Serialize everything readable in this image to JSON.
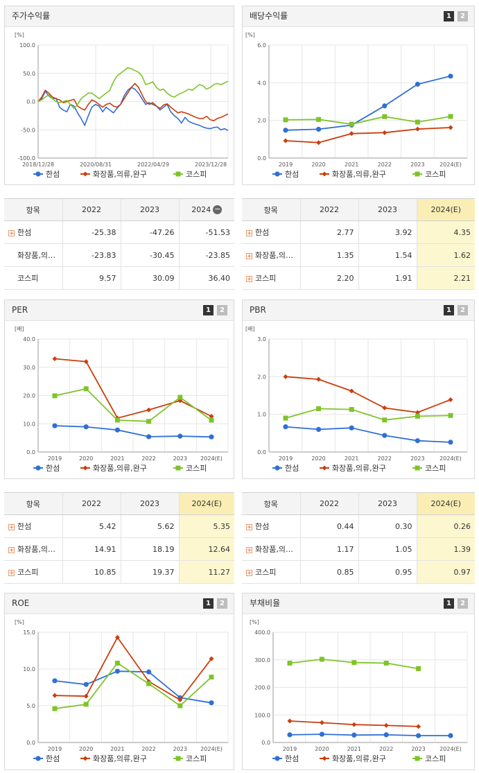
{
  "panels": {
    "p0": {
      "title": "주가수익률"
    },
    "p1": {
      "title": "배당수익률",
      "page1": "1",
      "page2": "2"
    },
    "p2": {
      "title": "PER",
      "page1": "1",
      "page2": "2"
    },
    "p3": {
      "title": "PBR",
      "page1": "1",
      "page2": "2"
    },
    "p4": {
      "title": "ROE",
      "page1": "1",
      "page2": "2"
    },
    "p5": {
      "title": "부채비율",
      "page1": "1",
      "page2": "2"
    }
  },
  "legend": [
    "한섬",
    "화장품,의류,완구",
    "코스피"
  ],
  "colors": {
    "s0": "#2f6fd6",
    "s1": "#cc3d0c",
    "s2": "#7ec428"
  },
  "tables": {
    "t0": {
      "headers": [
        "항목",
        "2022",
        "2023",
        "2024"
      ],
      "rows": [
        {
          "name": "한섬",
          "v": [
            "-25.38",
            "-47.26",
            "-51.53"
          ],
          "plus": true
        },
        {
          "name": "화장품,의…",
          "v": [
            "-23.83",
            "-30.45",
            "-23.85"
          ],
          "plus": false
        },
        {
          "name": "코스피",
          "v": [
            "9.57",
            "30.09",
            "36.40"
          ],
          "plus": false
        }
      ]
    },
    "t1": {
      "headers": [
        "항목",
        "2022",
        "2023",
        "2024(E)"
      ],
      "rows": [
        {
          "name": "한섬",
          "v": [
            "2.77",
            "3.92",
            "4.35"
          ]
        },
        {
          "name": "화장품,의…",
          "v": [
            "1.35",
            "1.54",
            "1.62"
          ]
        },
        {
          "name": "코스피",
          "v": [
            "2.20",
            "1.91",
            "2.21"
          ]
        }
      ]
    },
    "t2": {
      "headers": [
        "항목",
        "2022",
        "2023",
        "2024(E)"
      ],
      "rows": [
        {
          "name": "한섬",
          "v": [
            "5.42",
            "5.62",
            "5.35"
          ]
        },
        {
          "name": "화장품,의…",
          "v": [
            "14.91",
            "18.19",
            "12.64"
          ]
        },
        {
          "name": "코스피",
          "v": [
            "10.85",
            "19.37",
            "11.27"
          ]
        }
      ]
    },
    "t3": {
      "headers": [
        "항목",
        "2022",
        "2023",
        "2024(E)"
      ],
      "rows": [
        {
          "name": "한섬",
          "v": [
            "0.44",
            "0.30",
            "0.26"
          ]
        },
        {
          "name": "화장품,의…",
          "v": [
            "1.17",
            "1.05",
            "1.39"
          ]
        },
        {
          "name": "코스피",
          "v": [
            "0.85",
            "0.95",
            "0.97"
          ]
        }
      ]
    }
  },
  "chart_data": [
    {
      "type": "line",
      "title": "주가수익률",
      "ylabel": "[%]",
      "ylim": [
        -100,
        100
      ],
      "yticks": [
        "100.0",
        "50.0",
        "0.0",
        "-50.0",
        "-100.0"
      ],
      "xticks": [
        "2018/12/28",
        "2020/08/31",
        "2022/04/29",
        "2023/12/28"
      ],
      "series": [
        {
          "name": "한섬",
          "values": [
            0,
            5,
            18,
            10,
            5,
            6,
            -10,
            -15,
            -18,
            -5,
            -8,
            -20,
            -30,
            -42,
            -25,
            -10,
            -5,
            -8,
            -18,
            -10,
            -15,
            -20,
            -12,
            -5,
            10,
            20,
            25,
            22,
            15,
            5,
            -5,
            -2,
            -5,
            -8,
            -15,
            -10,
            -5,
            -18,
            -25,
            -30,
            -38,
            -28,
            -35,
            -38,
            -40,
            -42,
            -45,
            -47,
            -48,
            -46,
            -45,
            -50,
            -48,
            -51
          ]
        },
        {
          "name": "화장품,의류,완구",
          "values": [
            0,
            8,
            20,
            15,
            8,
            5,
            3,
            -2,
            0,
            2,
            4,
            -8,
            -12,
            -15,
            -5,
            3,
            0,
            -5,
            -10,
            -5,
            -3,
            -8,
            -10,
            -5,
            5,
            15,
            25,
            32,
            25,
            12,
            0,
            -5,
            -2,
            -8,
            -12,
            -6,
            -4,
            -10,
            -15,
            -20,
            -18,
            -20,
            -22,
            -25,
            -28,
            -30,
            -30,
            -26,
            -32,
            -34,
            -30,
            -28,
            -25,
            -22
          ]
        },
        {
          "name": "코스피",
          "values": [
            0,
            3,
            8,
            12,
            5,
            0,
            -2,
            0,
            2,
            -5,
            -12,
            -5,
            5,
            10,
            15,
            15,
            10,
            5,
            10,
            15,
            20,
            35,
            45,
            50,
            55,
            60,
            58,
            55,
            52,
            45,
            30,
            32,
            35,
            25,
            20,
            22,
            15,
            10,
            8,
            12,
            15,
            18,
            22,
            20,
            25,
            30,
            28,
            22,
            25,
            30,
            32,
            30,
            33,
            36
          ]
        }
      ]
    },
    {
      "type": "line",
      "title": "배당수익률",
      "ylabel": "[%]",
      "ylim": [
        0,
        6
      ],
      "yticks": [
        "6.0",
        "4.0",
        "2.0",
        "0.0"
      ],
      "categories": [
        "2019",
        "2020",
        "2021",
        "2022",
        "2023",
        "2024(E)"
      ],
      "series": [
        {
          "name": "한섬",
          "values": [
            1.48,
            1.53,
            1.75,
            2.77,
            3.92,
            4.35
          ]
        },
        {
          "name": "화장품,의류,완구",
          "values": [
            0.92,
            0.82,
            1.3,
            1.35,
            1.54,
            1.62
          ]
        },
        {
          "name": "코스피",
          "values": [
            2.03,
            2.05,
            1.8,
            2.2,
            1.91,
            2.21
          ]
        }
      ]
    },
    {
      "type": "line",
      "title": "PER",
      "ylabel": "[배]",
      "ylim": [
        0,
        40
      ],
      "yticks": [
        "40.0",
        "30.0",
        "20.0",
        "10.0",
        "0.0"
      ],
      "categories": [
        "2019",
        "2020",
        "2021",
        "2022",
        "2023",
        "2024(E)"
      ],
      "series": [
        {
          "name": "한섬",
          "values": [
            9.3,
            8.9,
            7.8,
            5.42,
            5.62,
            5.35
          ]
        },
        {
          "name": "화장품,의류,완구",
          "values": [
            33.0,
            32.0,
            12.0,
            14.91,
            18.19,
            12.64
          ]
        },
        {
          "name": "코스피",
          "values": [
            19.9,
            22.4,
            11.3,
            10.85,
            19.37,
            11.27
          ]
        }
      ]
    },
    {
      "type": "line",
      "title": "PBR",
      "ylabel": "[배]",
      "ylim": [
        0,
        3
      ],
      "yticks": [
        "3.0",
        "2.0",
        "1.0",
        "0.0"
      ],
      "categories": [
        "2019",
        "2020",
        "2021",
        "2022",
        "2023",
        "2024(E)"
      ],
      "series": [
        {
          "name": "한섬",
          "values": [
            0.67,
            0.6,
            0.64,
            0.44,
            0.3,
            0.26
          ]
        },
        {
          "name": "화장품,의류,완구",
          "values": [
            2.0,
            1.93,
            1.62,
            1.17,
            1.05,
            1.39
          ]
        },
        {
          "name": "코스피",
          "values": [
            0.9,
            1.15,
            1.13,
            0.85,
            0.95,
            0.97
          ]
        }
      ]
    },
    {
      "type": "line",
      "title": "ROE",
      "ylabel": "[%]",
      "ylim": [
        0,
        15
      ],
      "yticks": [
        "15.0",
        "10.0",
        "5.0",
        "0.0"
      ],
      "categories": [
        "2019",
        "2020",
        "2021",
        "2022",
        "2023",
        "2024(E)"
      ],
      "series": [
        {
          "name": "한섬",
          "values": [
            8.4,
            7.9,
            9.7,
            9.6,
            6.1,
            5.4
          ]
        },
        {
          "name": "화장품,의류,완구",
          "values": [
            6.4,
            6.3,
            14.3,
            8.3,
            5.8,
            11.4
          ]
        },
        {
          "name": "코스피",
          "values": [
            4.6,
            5.2,
            10.8,
            8.0,
            5.0,
            8.9
          ]
        }
      ]
    },
    {
      "type": "line",
      "title": "부채비율",
      "ylabel": "[%]",
      "ylim": [
        0,
        400
      ],
      "yticks": [
        "400.0",
        "300.0",
        "200.0",
        "100.0",
        "0.0"
      ],
      "categories": [
        "2019",
        "2020",
        "2021",
        "2022",
        "2023",
        "2024(E)"
      ],
      "series": [
        {
          "name": "한섬",
          "values": [
            28,
            30,
            27,
            28,
            25,
            25
          ]
        },
        {
          "name": "화장품,의류,완구",
          "values": [
            78,
            72,
            65,
            62,
            58,
            null
          ]
        },
        {
          "name": "코스피",
          "values": [
            288,
            302,
            290,
            288,
            268,
            null
          ]
        }
      ]
    }
  ]
}
